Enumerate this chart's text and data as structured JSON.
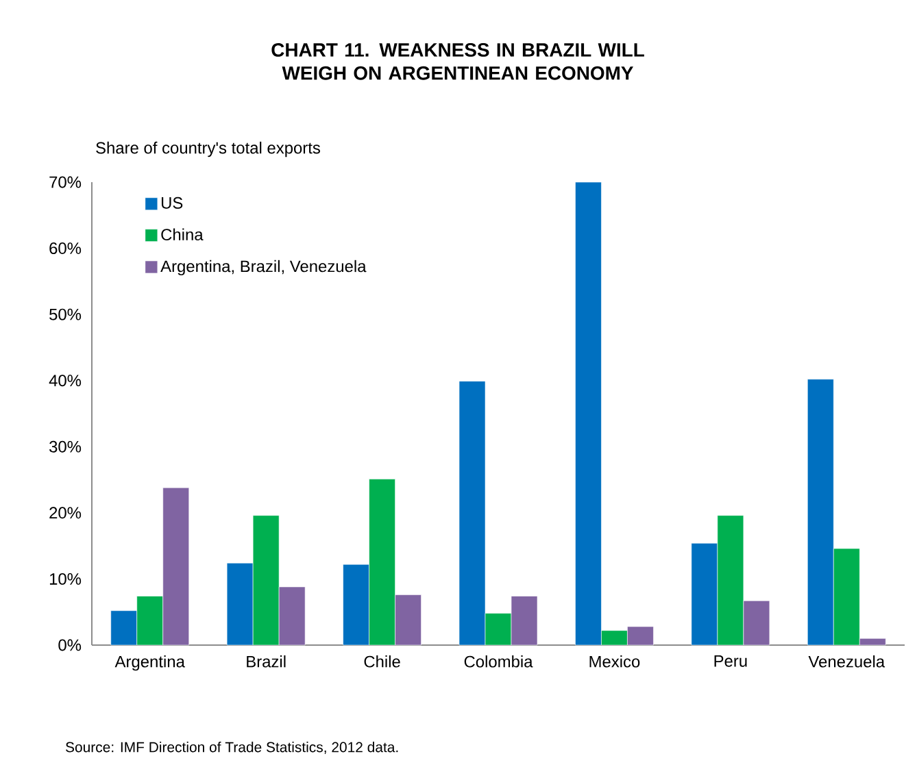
{
  "chart_data": {
    "type": "bar",
    "title": "CHART 11. WEAKNESS IN BRAZIL WILL WEIGH ON ARGENTINEAN ECONOMY",
    "ylabel": "Share of country's total exports",
    "categories": [
      "Argentina",
      "Brazil",
      "Chile",
      "Colombia",
      "Mexico",
      "Peru",
      "Venezuela"
    ],
    "series": [
      {
        "name": "US",
        "color": "#0070c0",
        "values": [
          5.2,
          12.4,
          12.2,
          39.9,
          70,
          15.4,
          40.2
        ]
      },
      {
        "name": "China",
        "color": "#00b050",
        "values": [
          7.4,
          19.6,
          25.1,
          4.8,
          2.2,
          19.6,
          14.6
        ]
      },
      {
        "name": "Argentina, Brazil, Venezuela",
        "color": "#8064a2",
        "values": [
          23.8,
          8.8,
          7.6,
          7.4,
          2.8,
          6.7,
          1.0
        ]
      }
    ],
    "ylim": [
      0,
      70
    ],
    "yticks": [
      {
        "value": 0,
        "label": "0%"
      },
      {
        "value": 10,
        "label": "10%"
      },
      {
        "value": 20,
        "label": "20%"
      },
      {
        "value": 30,
        "label": "30%"
      },
      {
        "value": 40,
        "label": "40%"
      },
      {
        "value": 50,
        "label": "50%"
      },
      {
        "value": 60,
        "label": "60%"
      },
      {
        "value": 70,
        "label": "70%"
      }
    ],
    "legend": "top left",
    "annotations": [
      "Source: IMF Direction of Trade Statistics, 2012 data."
    ]
  }
}
